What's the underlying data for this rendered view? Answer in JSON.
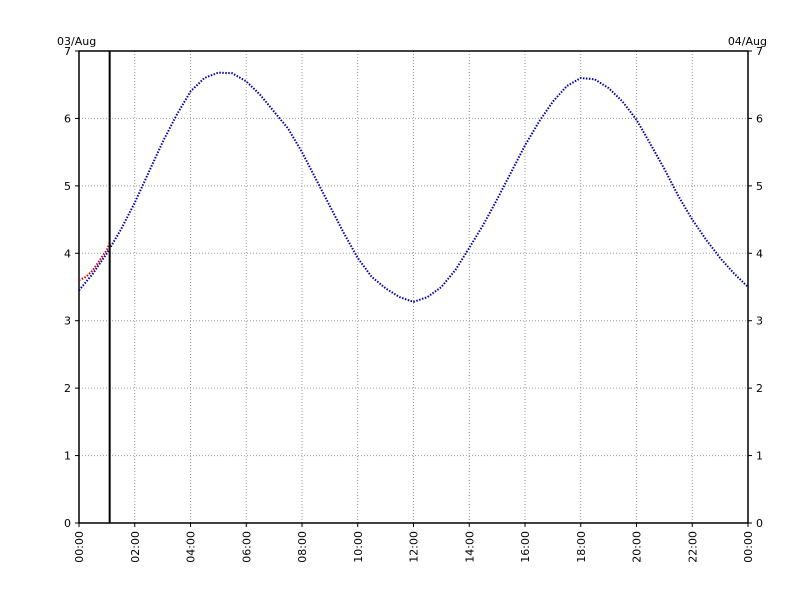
{
  "chart_data": {
    "type": "line",
    "left_date": "03/Aug",
    "right_date": "04/Aug",
    "xlim": [
      0,
      24
    ],
    "xticks": [
      {
        "value": 0,
        "label": "00:00"
      },
      {
        "value": 2,
        "label": "02:00"
      },
      {
        "value": 4,
        "label": "04:00"
      },
      {
        "value": 6,
        "label": "06:00"
      },
      {
        "value": 8,
        "label": "08:00"
      },
      {
        "value": 10,
        "label": "10:00"
      },
      {
        "value": 12,
        "label": "12:00"
      },
      {
        "value": 14,
        "label": "14:00"
      },
      {
        "value": 16,
        "label": "16:00"
      },
      {
        "value": 18,
        "label": "18:00"
      },
      {
        "value": 20,
        "label": "20:00"
      },
      {
        "value": 22,
        "label": "22:00"
      },
      {
        "value": 24,
        "label": "00:00"
      }
    ],
    "ylim": [
      0,
      7
    ],
    "yticks": [
      0,
      1,
      2,
      3,
      4,
      5,
      6,
      7
    ],
    "grid": true,
    "marker_x": 1.1,
    "series": [
      {
        "color": "#0000aa",
        "x": [
          0,
          0.5,
          1,
          1.5,
          2,
          2.5,
          3,
          3.5,
          4,
          4.5,
          5,
          5.5,
          6,
          6.5,
          7,
          7.5,
          8,
          8.5,
          9,
          9.5,
          10,
          10.5,
          11,
          11.5,
          12,
          12.5,
          13,
          13.5,
          14,
          14.5,
          15,
          15.5,
          16,
          16.5,
          17,
          17.5,
          18,
          18.5,
          19,
          19.5,
          20,
          20.5,
          21,
          21.5,
          22,
          22.5,
          23,
          23.5,
          24
        ],
        "values": [
          3.45,
          3.7,
          4.0,
          4.35,
          4.75,
          5.2,
          5.65,
          6.05,
          6.4,
          6.6,
          6.68,
          6.67,
          6.55,
          6.35,
          6.1,
          5.85,
          5.5,
          5.1,
          4.7,
          4.3,
          3.93,
          3.65,
          3.48,
          3.35,
          3.28,
          3.35,
          3.5,
          3.75,
          4.08,
          4.42,
          4.8,
          5.2,
          5.6,
          5.95,
          6.25,
          6.48,
          6.6,
          6.58,
          6.45,
          6.25,
          5.98,
          5.62,
          5.25,
          4.85,
          4.5,
          4.2,
          3.93,
          3.7,
          3.5
        ]
      },
      {
        "color": "#dd0000",
        "x": [
          0,
          0.25,
          0.5,
          0.75,
          1.0,
          1.1
        ],
        "values": [
          3.6,
          3.65,
          3.75,
          3.9,
          4.05,
          4.15
        ]
      }
    ]
  }
}
